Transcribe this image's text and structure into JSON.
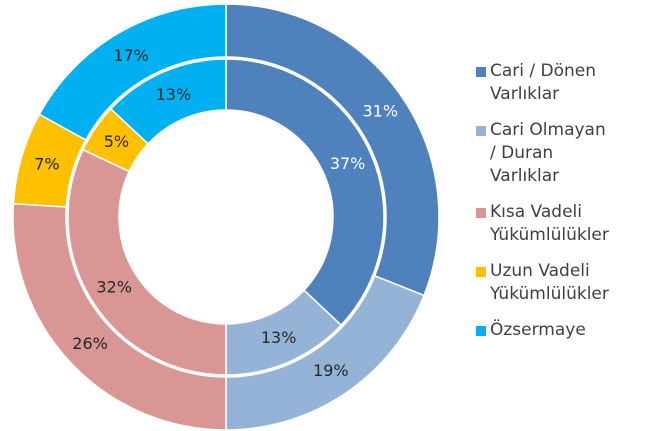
{
  "chart_data": {
    "type": "doughnut",
    "categories": [
      "Cari / Dönen Varlıklar",
      "Cari Olmayan / Duran Varlıklar",
      "Kısa Vadeli Yükümlülükler",
      "Uzun Vadeli Yükümlülükler",
      "Özsermaye"
    ],
    "colors": [
      "#4f81bd",
      "#95b3d7",
      "#d99694",
      "#ffc000",
      "#00b0f0"
    ],
    "series": [
      {
        "values": [
          31,
          19,
          26,
          7,
          17
        ],
        "value_labels": [
          "31%",
          "19%",
          "26%",
          "7%",
          "17%"
        ]
      },
      {
        "values": [
          37,
          13,
          32,
          5,
          13
        ],
        "value_labels": [
          "37%",
          "13%",
          "32%",
          "5%",
          "13%"
        ]
      }
    ],
    "legend": "right"
  }
}
